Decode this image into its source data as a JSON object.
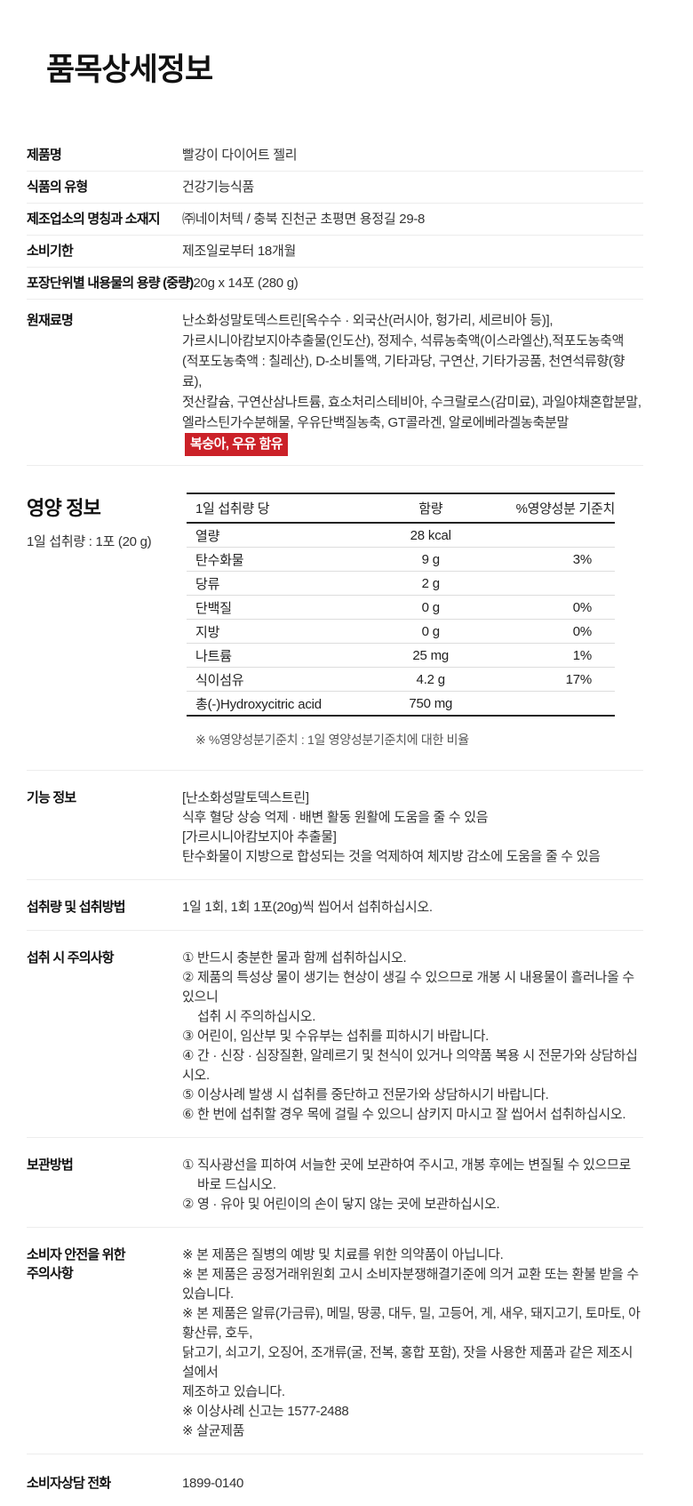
{
  "title": "품목상세정보",
  "colors": {
    "badge_bg": "#cb2128",
    "badge_text": "#ffffff"
  },
  "info_rows": [
    {
      "label": "제품명",
      "value": "빨강이 다이어트 젤리"
    },
    {
      "label": "식품의 유형",
      "value": "건강기능식품"
    },
    {
      "label": "제조업소의 명칭과 소재지",
      "value": "㈜네이처텍 / 충북 진천군 초평면 용정길 29-8"
    },
    {
      "label": "소비기한",
      "value": "제조일로부터 18개월"
    },
    {
      "label": "포장단위별 내용물의 용량 (중량)",
      "value": "20g x 14포 (280 g)"
    }
  ],
  "ingredients": {
    "label": "원재료명",
    "lines": [
      "난소화성말토덱스트린[옥수수 · 외국산(러시아, 헝가리, 세르비아 등)],",
      "가르시니아캄보지아추출물(인도산), 정제수, 석류농축액(이스라엘산),적포도농축액",
      "(적포도농축액 : 칠레산), D-소비톨액, 기타과당, 구연산, 기타가공품, 천연석류향(향료),",
      "젓산칼슘, 구연산삼나트륨, 효소처리스테비아, 수크랄로스(감미료), 과일야채혼합분말,",
      "엘라스틴가수분해물, 우유단백질농축, GT콜라겐, 알로에베라겔농축분말"
    ],
    "allergen_badge": "복숭아, 우유 함유"
  },
  "nutrition": {
    "section_title": "영양 정보",
    "serving_note": "1일 섭취량 : 1포 (20 g)",
    "footnote": "※ %영양성분기준치 : 1일 영양성분기준치에 대한 비율",
    "table": {
      "columns": [
        "1일 섭취량 당",
        "함량",
        "%영양성분 기준치"
      ],
      "rows": [
        {
          "name": "열량",
          "amount": "28 kcal",
          "pct": ""
        },
        {
          "name": "탄수화물",
          "amount": "9 g",
          "pct": "3%"
        },
        {
          "name": "당류",
          "amount": "2 g",
          "pct": ""
        },
        {
          "name": "단백질",
          "amount": "0 g",
          "pct": "0%"
        },
        {
          "name": "지방",
          "amount": "0 g",
          "pct": "0%"
        },
        {
          "name": "나트륨",
          "amount": "25 mg",
          "pct": "1%"
        },
        {
          "name": "식이섬유",
          "amount": "4.2 g",
          "pct": "17%"
        },
        {
          "name": "총(-)Hydroxycitric acid",
          "amount": "750 mg",
          "pct": ""
        }
      ]
    }
  },
  "function_info": {
    "label": "기능 정보",
    "lines": [
      "[난소화성말토덱스트린]",
      "식후 혈당 상승 억제 · 배변 활동 원활에 도움을 줄 수 있음",
      "[가르시니아캄보지아 추출물]",
      "탄수화물이 지방으로 합성되는 것을 억제하여 체지방 감소에 도움을 줄 수 있음"
    ]
  },
  "intake_method": {
    "label": "섭취량 및 섭취방법",
    "lines": [
      "1일 1회, 1회 1포(20g)씩 씹어서 섭취하십시오."
    ]
  },
  "intake_caution": {
    "label": "섭취 시 주의사항",
    "lines": [
      "① 반드시 충분한 물과 함께 섭취하십시오.",
      "② 제품의 특성상 물이 생기는 현상이 생길 수 있으므로 개봉 시 내용물이 흘러나올 수 있으니",
      "섭취 시 주의하십시오.",
      "③ 어린이, 임산부 및 수유부는 섭취를 피하시기 바랍니다.",
      "④ 간 · 신장 · 심장질환, 알레르기 및 천식이 있거나 의약품 복용 시 전문가와 상담하십시오.",
      "⑤ 이상사례 발생 시 섭취를 중단하고 전문가와 상담하시기 바랍니다.",
      "⑥ 한 번에 섭취할 경우 목에 걸릴 수 있으니 삼키지 마시고 잘 씹어서 섭취하십시오."
    ]
  },
  "storage": {
    "label": "보관방법",
    "lines": [
      "① 직사광선을 피하여 서늘한 곳에 보관하여 주시고, 개봉 후에는 변질될 수 있으므로",
      "바로 드십시오.",
      "② 영 · 유아 및 어린이의 손이 닿지 않는 곳에 보관하십시오."
    ]
  },
  "consumer_safety": {
    "label_line1": "소비자 안전을 위한",
    "label_line2": "주의사항",
    "lines": [
      "※ 본 제품은 질병의 예방 및 치료를 위한 의약품이 아닙니다.",
      "※ 본 제품은 공정거래위원회 고시 소비자분쟁해결기준에 의거 교환 또는 환불 받을 수 있습니다.",
      "※ 본 제품은 알류(가금류), 메밀, 땅콩, 대두, 밀, 고등어, 게, 새우, 돼지고기, 토마토, 아황산류, 호두,",
      "닭고기, 쇠고기, 오징어, 조개류(굴, 전복, 홍합 포함), 잣을 사용한 제품과 같은 제조시설에서",
      "제조하고 있습니다.",
      "※ 이상사례 신고는 1577-2488",
      "※ 살균제품"
    ]
  },
  "consumer_phone": {
    "label": "소비자상담 전화",
    "value": "1899-0140"
  }
}
